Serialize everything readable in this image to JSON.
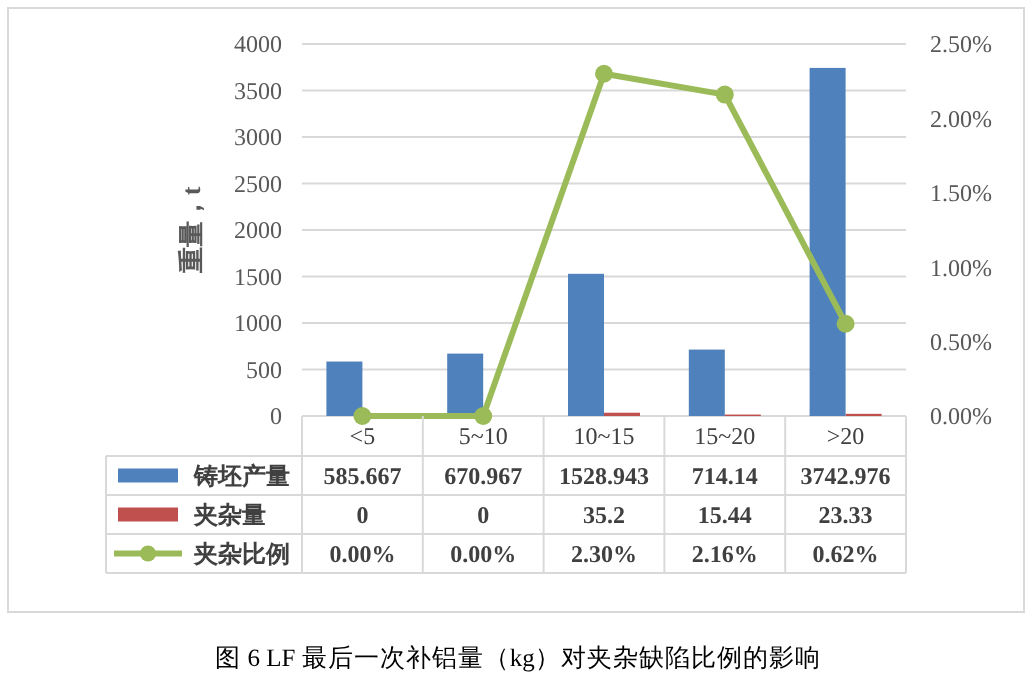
{
  "chart_data": {
    "type": "bar",
    "title": "图 6 LF 最后一次补铝量（kg）对夹杂缺陷比例的影响",
    "ylabel": "重量，t",
    "categories": [
      "<5",
      "5~10",
      "10~15",
      "15~20",
      ">20"
    ],
    "series": [
      {
        "name": "铸坯产量",
        "color": "#4f81bd",
        "values": [
          585.667,
          670.967,
          1528.943,
          714.14,
          3742.976
        ],
        "value_labels": [
          "585.667",
          "670.967",
          "1528.943",
          "714.14",
          "3742.976"
        ]
      },
      {
        "name": "夹杂量",
        "color": "#c0504d",
        "values": [
          0,
          0,
          35.2,
          15.44,
          23.33
        ],
        "value_labels": [
          "0",
          "0",
          "35.2",
          "15.44",
          "23.33"
        ]
      },
      {
        "name": "夹杂比例",
        "type": "line",
        "axis": "y2",
        "color": "#9bbb59",
        "marker": "circle",
        "values": [
          0,
          0,
          2.3,
          2.16,
          0.62
        ],
        "value_labels": [
          "0.00%",
          "0.00%",
          "2.30%",
          "2.16%",
          "0.62%"
        ]
      }
    ],
    "ylim": [
      0,
      4000
    ],
    "yticks": [
      0,
      500,
      1000,
      1500,
      2000,
      2500,
      3000,
      3500,
      4000
    ],
    "y2lim": [
      0,
      2.5
    ],
    "y2ticks": [
      {
        "value": 0,
        "label": "0.00%"
      },
      {
        "value": 0.5,
        "label": "0.50%"
      },
      {
        "value": 1,
        "label": "1.00%"
      },
      {
        "value": 1.5,
        "label": "1.50%"
      },
      {
        "value": 2,
        "label": "2.00%"
      },
      {
        "value": 2.5,
        "label": "2.50%"
      }
    ],
    "grid": "y",
    "legend": "bottom"
  }
}
